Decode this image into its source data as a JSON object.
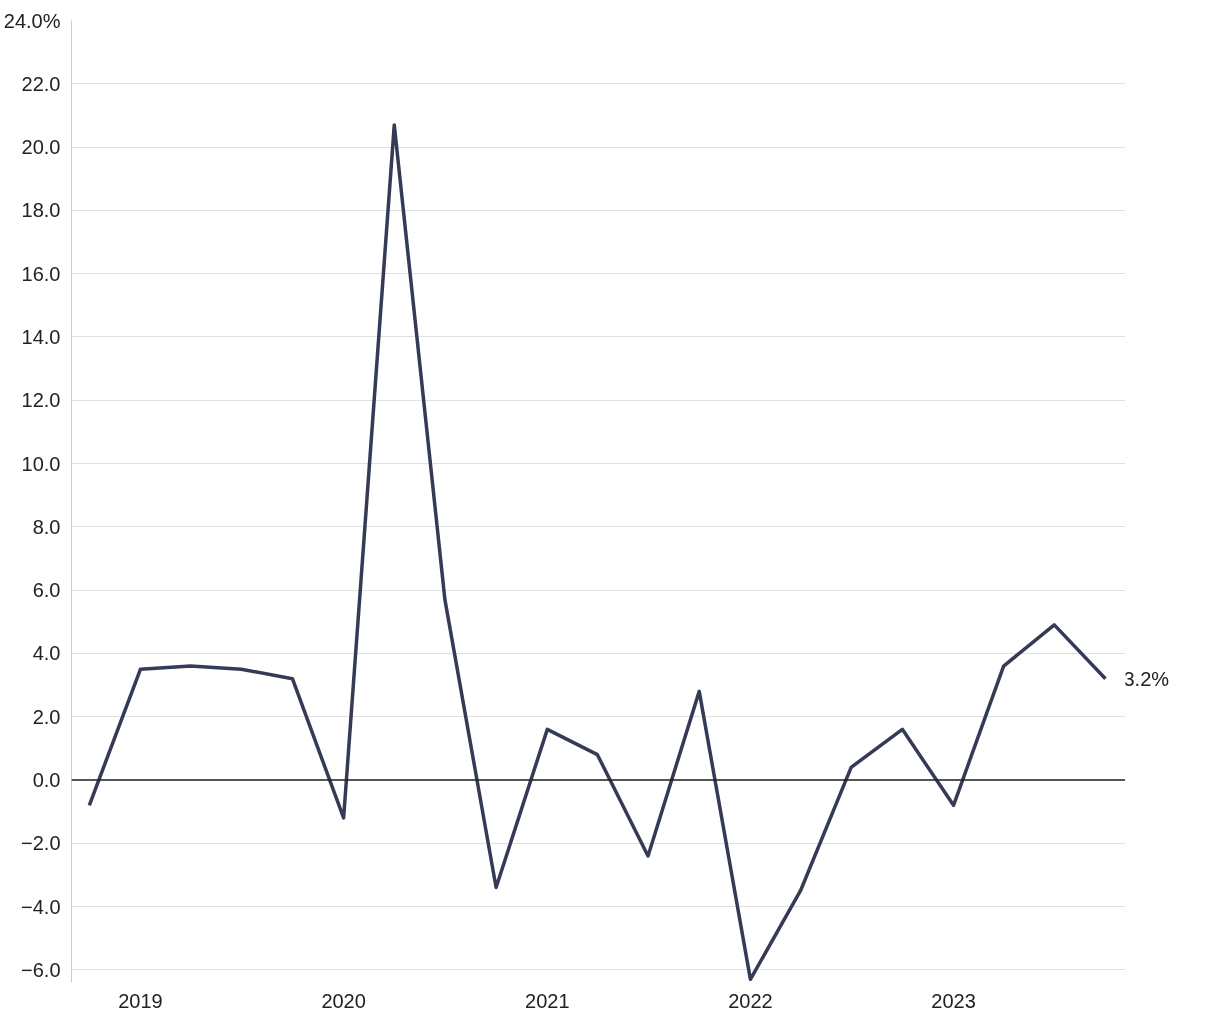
{
  "chart_data": {
    "type": "line",
    "x": [
      "2018-10",
      "2019-01",
      "2019-04",
      "2019-07",
      "2019-10",
      "2020-01",
      "2020-04",
      "2020-07",
      "2020-10",
      "2021-01",
      "2021-04",
      "2021-07",
      "2021-10",
      "2022-01",
      "2022-04",
      "2022-07",
      "2022-10",
      "2023-01",
      "2023-04",
      "2023-07",
      "2023-10"
    ],
    "series": [
      {
        "color": "#353a55",
        "values": [
          -0.8,
          3.5,
          3.6,
          3.5,
          3.2,
          -1.2,
          20.7,
          5.7,
          -3.4,
          1.6,
          0.8,
          -2.4,
          2.8,
          -6.3,
          -3.5,
          0.4,
          1.6,
          -0.8,
          3.6,
          4.9,
          3.2
        ]
      }
    ],
    "xlim": [
      "2018-08-30",
      "2023-11-06"
    ],
    "xticks": [
      {
        "value": "2019-01",
        "label": "2019"
      },
      {
        "value": "2020-01",
        "label": "2020"
      },
      {
        "value": "2021-01",
        "label": "2021"
      },
      {
        "value": "2022-01",
        "label": "2022"
      },
      {
        "value": "2023-01",
        "label": "2023"
      }
    ],
    "ylim": [
      -6.4,
      24
    ],
    "yticks": [
      {
        "value": -6,
        "label": "−6.0"
      },
      {
        "value": -4,
        "label": "−4.0"
      },
      {
        "value": -2,
        "label": "−2.0"
      },
      {
        "value": 0,
        "label": "0.0"
      },
      {
        "value": 2,
        "label": "2.0"
      },
      {
        "value": 4,
        "label": "4.0"
      },
      {
        "value": 6,
        "label": "6.0"
      },
      {
        "value": 8,
        "label": "8.0"
      },
      {
        "value": 10,
        "label": "10.0"
      },
      {
        "value": 12,
        "label": "12.0"
      },
      {
        "value": 14,
        "label": "14.0"
      },
      {
        "value": 16,
        "label": "16.0"
      },
      {
        "value": 18,
        "label": "18.0"
      },
      {
        "value": 20,
        "label": "20.0"
      },
      {
        "value": 22,
        "label": "22.0"
      },
      {
        "value": 24,
        "label": "24.0%"
      }
    ],
    "ref_lines": [
      {
        "axis": "y",
        "value": 0,
        "color": "#222222"
      }
    ],
    "annotations": [
      {
        "text": "3.2%",
        "x": "2023-10",
        "y": 3.2
      }
    ],
    "grid": "y",
    "marker": "none",
    "line_style": "solid"
  }
}
